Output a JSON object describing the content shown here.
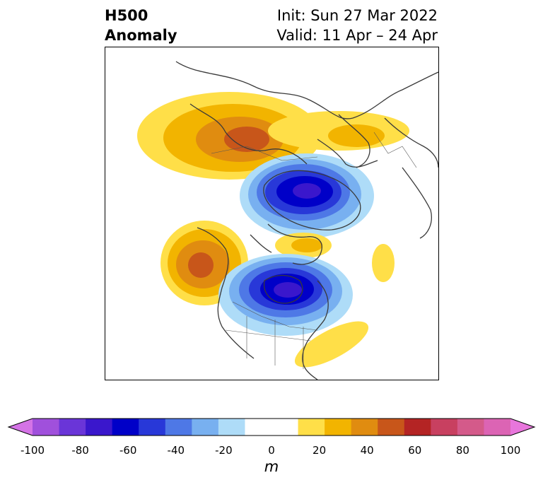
{
  "header": {
    "variable_line1": "H500",
    "variable_line2": "Anomaly",
    "init": "Init: Sun 27 Mar 2022",
    "valid": "Valid: 11 Apr – 24 Apr"
  },
  "map": {
    "field": "500 hPa geopotential height anomaly",
    "projection": "polar stereographic (North America / Arctic)",
    "features": [
      {
        "kind": "positive",
        "region": "northern Siberia / Arctic Russia",
        "peak_m": 55
      },
      {
        "kind": "positive",
        "region": "north of Scandinavia / Barents Sea",
        "peak_m": 25
      },
      {
        "kind": "negative",
        "region": "Greenland / Canadian Arctic",
        "peak_m": -65
      },
      {
        "kind": "positive",
        "region": "Gulf of Alaska / NE Pacific",
        "peak_m": 55
      },
      {
        "kind": "negative",
        "region": "central Canada / Hudson Bay",
        "peak_m": -65
      },
      {
        "kind": "positive",
        "region": "North Atlantic (west)",
        "peak_m": 15
      },
      {
        "kind": "positive",
        "region": "western Atlantic off US east coast",
        "peak_m": 15
      }
    ]
  },
  "colorbar": {
    "unit": "m",
    "ticks": [
      "-100",
      "-80",
      "-60",
      "-40",
      "-20",
      "0",
      "20",
      "40",
      "60",
      "80",
      "100"
    ],
    "colors": [
      "#d473e6",
      "#a050dc",
      "#6a35d8",
      "#3a17cc",
      "#0000c8",
      "#2838d8",
      "#4e78e6",
      "#78b0f0",
      "#aedcf8",
      "#ffffff",
      "#ffffff",
      "#ffdf48",
      "#f2b400",
      "#e08c10",
      "#c8561a",
      "#b42424",
      "#c84060",
      "#d45a8a",
      "#dc64b4",
      "#e876dc"
    ]
  }
}
